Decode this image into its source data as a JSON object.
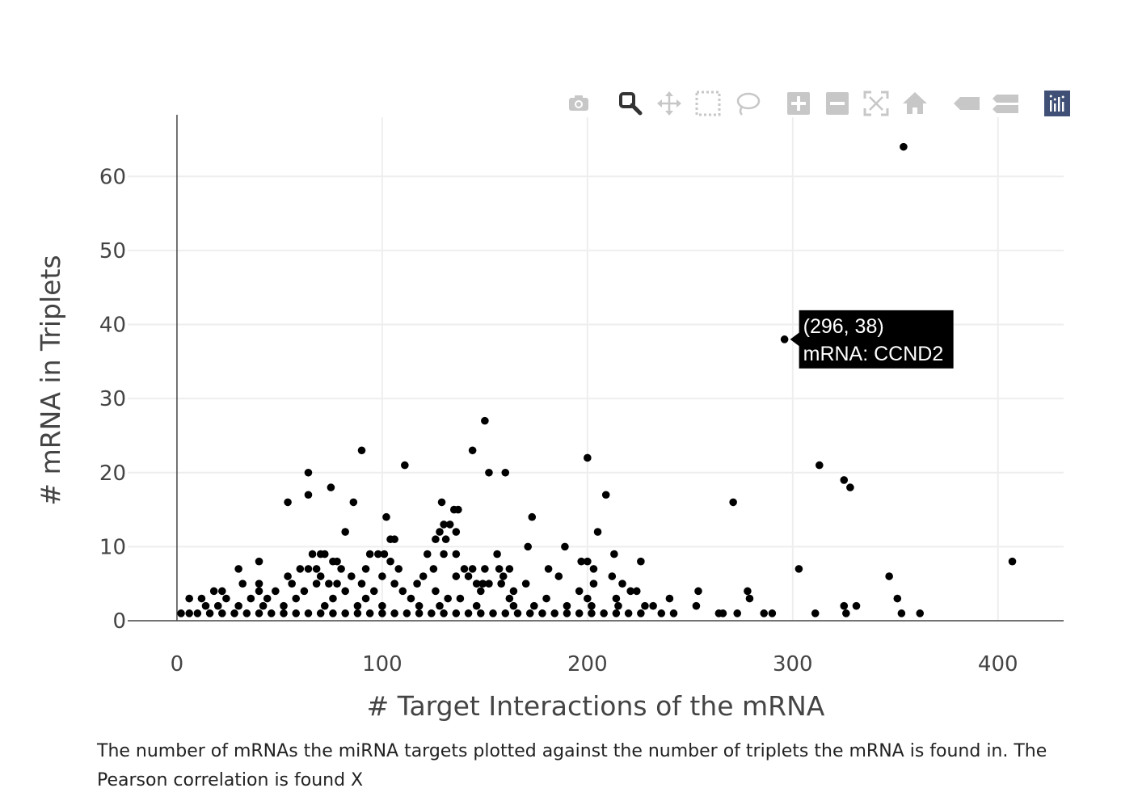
{
  "modebar": {
    "buttons": [
      {
        "name": "camera-icon",
        "title": "Download plot as a png"
      },
      {
        "name": "zoom-icon",
        "title": "Zoom",
        "active": true
      },
      {
        "name": "pan-icon",
        "title": "Pan"
      },
      {
        "name": "box-select-icon",
        "title": "Box Select"
      },
      {
        "name": "lasso-select-icon",
        "title": "Lasso Select"
      },
      {
        "name": "zoom-in-icon",
        "title": "Zoom in"
      },
      {
        "name": "zoom-out-icon",
        "title": "Zoom out"
      },
      {
        "name": "autoscale-icon",
        "title": "Autoscale"
      },
      {
        "name": "reset-axes-icon",
        "title": "Reset axes"
      },
      {
        "name": "hover-closest-icon",
        "title": "Show closest data on hover"
      },
      {
        "name": "hover-compare-icon",
        "title": "Compare data on hover"
      },
      {
        "name": "plotly-logo-icon",
        "title": "Produced with Plotly"
      }
    ],
    "color_inactive": "#c7c7c7",
    "color_active": "#333333",
    "logo_color": "#3f4f75"
  },
  "chart_data": {
    "type": "scatter",
    "xlabel": "# Target Interactions of the mRNA",
    "ylabel": "# mRNA in Triplets",
    "xlim": [
      -24,
      432
    ],
    "ylim": [
      0,
      68
    ],
    "xticks": [
      0,
      100,
      200,
      300,
      400
    ],
    "yticks": [
      0,
      10,
      20,
      30,
      40,
      50,
      60
    ],
    "grid": true,
    "marker_color": "#000000",
    "points": [
      [
        354,
        64
      ],
      [
        296,
        38
      ],
      [
        150,
        27
      ],
      [
        90,
        23
      ],
      [
        144,
        23
      ],
      [
        200,
        22
      ],
      [
        111,
        21
      ],
      [
        313,
        21
      ],
      [
        64,
        20
      ],
      [
        152,
        20
      ],
      [
        160,
        20
      ],
      [
        325,
        19
      ],
      [
        75,
        18
      ],
      [
        328,
        18
      ],
      [
        64,
        17
      ],
      [
        209,
        17
      ],
      [
        54,
        16
      ],
      [
        86,
        16
      ],
      [
        129,
        16
      ],
      [
        271,
        16
      ],
      [
        135,
        15
      ],
      [
        137,
        15
      ],
      [
        102,
        14
      ],
      [
        173,
        14
      ],
      [
        82,
        12
      ],
      [
        128,
        12
      ],
      [
        136,
        12
      ],
      [
        205,
        12
      ],
      [
        104,
        11
      ],
      [
        106,
        11
      ],
      [
        126,
        11
      ],
      [
        131,
        11
      ],
      [
        130,
        13
      ],
      [
        133,
        13
      ],
      [
        171,
        10
      ],
      [
        189,
        10
      ],
      [
        40,
        8
      ],
      [
        76,
        8
      ],
      [
        78,
        8
      ],
      [
        104,
        8
      ],
      [
        197,
        8
      ],
      [
        200,
        8
      ],
      [
        226,
        8
      ],
      [
        407,
        8
      ],
      [
        66,
        9
      ],
      [
        70,
        9
      ],
      [
        72,
        9
      ],
      [
        94,
        9
      ],
      [
        98,
        9
      ],
      [
        101,
        9
      ],
      [
        122,
        9
      ],
      [
        130,
        9
      ],
      [
        136,
        9
      ],
      [
        156,
        9
      ],
      [
        213,
        9
      ],
      [
        30,
        7
      ],
      [
        60,
        7
      ],
      [
        64,
        7
      ],
      [
        68,
        7
      ],
      [
        80,
        7
      ],
      [
        92,
        7
      ],
      [
        108,
        7
      ],
      [
        125,
        7
      ],
      [
        140,
        7
      ],
      [
        144,
        7
      ],
      [
        150,
        7
      ],
      [
        157,
        7
      ],
      [
        162,
        7
      ],
      [
        181,
        7
      ],
      [
        203,
        7
      ],
      [
        303,
        7
      ],
      [
        54,
        6
      ],
      [
        70,
        6
      ],
      [
        85,
        6
      ],
      [
        100,
        6
      ],
      [
        120,
        6
      ],
      [
        136,
        6
      ],
      [
        142,
        6
      ],
      [
        159,
        6
      ],
      [
        186,
        6
      ],
      [
        212,
        6
      ],
      [
        347,
        6
      ],
      [
        32,
        5
      ],
      [
        40,
        5
      ],
      [
        56,
        5
      ],
      [
        68,
        5
      ],
      [
        74,
        5
      ],
      [
        78,
        5
      ],
      [
        90,
        5
      ],
      [
        106,
        5
      ],
      [
        117,
        5
      ],
      [
        146,
        5
      ],
      [
        149,
        5
      ],
      [
        152,
        5
      ],
      [
        158,
        5
      ],
      [
        170,
        5
      ],
      [
        203,
        5
      ],
      [
        217,
        5
      ],
      [
        18,
        4
      ],
      [
        22,
        4
      ],
      [
        40,
        4
      ],
      [
        48,
        4
      ],
      [
        62,
        4
      ],
      [
        82,
        4
      ],
      [
        96,
        4
      ],
      [
        110,
        4
      ],
      [
        126,
        4
      ],
      [
        148,
        4
      ],
      [
        164,
        4
      ],
      [
        196,
        4
      ],
      [
        221,
        4
      ],
      [
        224,
        4
      ],
      [
        254,
        4
      ],
      [
        278,
        4
      ],
      [
        6,
        3
      ],
      [
        12,
        3
      ],
      [
        24,
        3
      ],
      [
        36,
        3
      ],
      [
        44,
        3
      ],
      [
        58,
        3
      ],
      [
        76,
        3
      ],
      [
        92,
        3
      ],
      [
        114,
        3
      ],
      [
        132,
        3
      ],
      [
        138,
        3
      ],
      [
        162,
        3
      ],
      [
        180,
        3
      ],
      [
        200,
        3
      ],
      [
        214,
        3
      ],
      [
        240,
        3
      ],
      [
        279,
        3
      ],
      [
        351,
        3
      ],
      [
        14,
        2
      ],
      [
        20,
        2
      ],
      [
        30,
        2
      ],
      [
        42,
        2
      ],
      [
        52,
        2
      ],
      [
        72,
        2
      ],
      [
        88,
        2
      ],
      [
        100,
        2
      ],
      [
        118,
        2
      ],
      [
        128,
        2
      ],
      [
        146,
        2
      ],
      [
        164,
        2
      ],
      [
        174,
        2
      ],
      [
        190,
        2
      ],
      [
        202,
        2
      ],
      [
        215,
        2
      ],
      [
        228,
        2
      ],
      [
        232,
        2
      ],
      [
        253,
        2
      ],
      [
        325,
        2
      ],
      [
        331,
        2
      ],
      [
        2,
        1
      ],
      [
        6,
        1
      ],
      [
        10,
        1
      ],
      [
        16,
        1
      ],
      [
        22,
        1
      ],
      [
        28,
        1
      ],
      [
        34,
        1
      ],
      [
        40,
        1
      ],
      [
        46,
        1
      ],
      [
        52,
        1
      ],
      [
        58,
        1
      ],
      [
        64,
        1
      ],
      [
        70,
        1
      ],
      [
        76,
        1
      ],
      [
        82,
        1
      ],
      [
        88,
        1
      ],
      [
        94,
        1
      ],
      [
        100,
        1
      ],
      [
        106,
        1
      ],
      [
        112,
        1
      ],
      [
        118,
        1
      ],
      [
        124,
        1
      ],
      [
        130,
        1
      ],
      [
        136,
        1
      ],
      [
        142,
        1
      ],
      [
        148,
        1
      ],
      [
        154,
        1
      ],
      [
        160,
        1
      ],
      [
        166,
        1
      ],
      [
        172,
        1
      ],
      [
        178,
        1
      ],
      [
        184,
        1
      ],
      [
        190,
        1
      ],
      [
        196,
        1
      ],
      [
        202,
        1
      ],
      [
        208,
        1
      ],
      [
        214,
        1
      ],
      [
        220,
        1
      ],
      [
        226,
        1
      ],
      [
        236,
        1
      ],
      [
        242,
        1
      ],
      [
        264,
        1
      ],
      [
        266,
        1
      ],
      [
        273,
        1
      ],
      [
        286,
        1
      ],
      [
        290,
        1
      ],
      [
        311,
        1
      ],
      [
        326,
        1
      ],
      [
        353,
        1
      ],
      [
        362,
        1
      ]
    ],
    "hover": {
      "point": [
        296,
        38
      ],
      "line1": "(296, 38)",
      "line2": "mRNA: CCND2"
    }
  },
  "caption": "The number of mRNAs the miRNA targets plotted against the number of triplets the mRNA is found in. The Pearson correlation is found X"
}
